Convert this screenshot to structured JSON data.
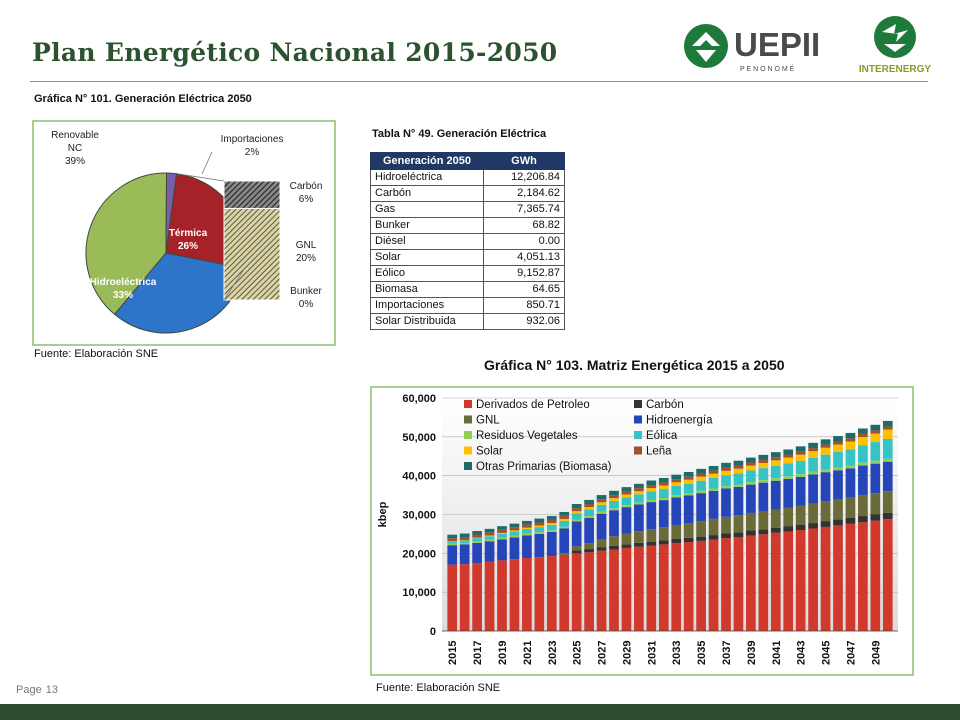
{
  "header": {
    "title": "Plan Energético Nacional 2015-2050",
    "logo_uep_main": "UEPII",
    "logo_uep_sub": "P E N O N O M É",
    "logo_inter": "INTERENERGY"
  },
  "pie_chart": {
    "caption": "Gráfica N° 101. Generación Eléctrica 2050",
    "source": "Fuente: Elaboración SNE",
    "labels": {
      "renovable": [
        "Renovable",
        "NC",
        "39%"
      ],
      "importaciones": [
        "Importaciones",
        "2%"
      ],
      "termica": [
        "Térmica",
        "26%"
      ],
      "hidro": [
        "Hidroeléctrica",
        "33%"
      ],
      "carbon": [
        "Carbón",
        "6%"
      ],
      "gnl": [
        "GNL",
        "20%"
      ],
      "bunker": [
        "Bunker",
        "0%"
      ]
    },
    "chart_data": {
      "type": "pie",
      "slices": [
        {
          "name": "Renovable NC",
          "value": 39,
          "color": "#9bbb59"
        },
        {
          "name": "Importaciones",
          "value": 2,
          "color": "#7a5ea8"
        },
        {
          "name": "Térmica",
          "value": 26,
          "color": "#a52228"
        },
        {
          "name": "Hidroeléctrica",
          "value": 33,
          "color": "#2e75c9"
        }
      ],
      "breakdown": [
        {
          "name": "Carbón",
          "value": 6
        },
        {
          "name": "GNL",
          "value": 20
        },
        {
          "name": "Bunker",
          "value": 0
        }
      ]
    }
  },
  "table": {
    "caption": "Tabla N° 49. Generación Eléctrica",
    "headers": [
      "Generación 2050",
      "GWh"
    ],
    "rows": [
      [
        "Hidroeléctrica",
        "12,206.84"
      ],
      [
        "Carbón",
        "2,184.62"
      ],
      [
        "Gas",
        "7,365.74"
      ],
      [
        "Bunker",
        "68.82"
      ],
      [
        "Diésel",
        "0.00"
      ],
      [
        "Solar",
        "4,051.13"
      ],
      [
        "Eólico",
        "9,152.87"
      ],
      [
        "Biomasa",
        "64.65"
      ],
      [
        "Importaciones",
        "850.71"
      ],
      [
        "Solar Distribuida",
        "932.06"
      ]
    ]
  },
  "bar_chart": {
    "caption": "Gráfica N° 103. Matriz Energética 2015 a 2050",
    "source": "Fuente: Elaboración SNE",
    "chart_data": {
      "type": "bar",
      "stacked": true,
      "ylabel": "kbep",
      "ylim": [
        0,
        60000
      ],
      "yticks": [
        "0",
        "10,000",
        "20,000",
        "30,000",
        "40,000",
        "50,000",
        "60,000"
      ],
      "xtick_labels": [
        "2015",
        "2017",
        "2019",
        "2021",
        "2023",
        "2025",
        "2027",
        "2029",
        "2031",
        "2033",
        "2035",
        "2037",
        "2039",
        "2041",
        "2043",
        "2045",
        "2047",
        "2049"
      ],
      "categories": [
        "2015",
        "2016",
        "2017",
        "2018",
        "2019",
        "2020",
        "2021",
        "2022",
        "2023",
        "2024",
        "2025",
        "2026",
        "2027",
        "2028",
        "2029",
        "2030",
        "2031",
        "2032",
        "2033",
        "2034",
        "2035",
        "2036",
        "2037",
        "2038",
        "2039",
        "2040",
        "2041",
        "2042",
        "2043",
        "2044",
        "2045",
        "2046",
        "2047",
        "2048",
        "2049",
        "2050"
      ],
      "series": [
        {
          "name": "Derivados de Petroleo",
          "color": "#d0392b",
          "values": [
            17100,
            17200,
            17500,
            17800,
            18200,
            18500,
            18800,
            19000,
            19300,
            19600,
            20000,
            20300,
            20700,
            21000,
            21400,
            21700,
            22000,
            22300,
            22600,
            22900,
            23200,
            23500,
            23900,
            24200,
            24600,
            24900,
            25300,
            25600,
            26000,
            26400,
            26800,
            27200,
            27600,
            28000,
            28400,
            28800
          ]
        },
        {
          "name": "Carbón",
          "color": "#333333",
          "values": [
            0,
            0,
            0,
            0,
            0,
            0,
            0,
            0,
            0,
            0,
            800,
            800,
            900,
            900,
            900,
            1000,
            1000,
            1000,
            1100,
            1100,
            1100,
            1200,
            1200,
            1200,
            1300,
            1300,
            1300,
            1400,
            1400,
            1400,
            1500,
            1500,
            1500,
            1600,
            1600,
            1600
          ]
        },
        {
          "name": "GNL",
          "color": "#6b6b3a",
          "values": [
            0,
            0,
            0,
            0,
            0,
            0,
            0,
            0,
            0,
            500,
            1000,
            1500,
            2000,
            2500,
            2800,
            3000,
            3200,
            3400,
            3600,
            3800,
            4000,
            4200,
            4300,
            4400,
            4500,
            4600,
            4700,
            4800,
            4900,
            5000,
            5100,
            5200,
            5300,
            5400,
            5500,
            5600
          ]
        },
        {
          "name": "Hidroenergía",
          "color": "#2645b8",
          "values": [
            5000,
            5100,
            5200,
            5300,
            5400,
            5600,
            5800,
            6000,
            6200,
            6300,
            6400,
            6500,
            6600,
            6700,
            6800,
            6900,
            7000,
            7000,
            7100,
            7100,
            7200,
            7200,
            7300,
            7300,
            7300,
            7400,
            7400,
            7400,
            7400,
            7500,
            7500,
            7500,
            7500,
            7600,
            7600,
            7600
          ]
        },
        {
          "name": "Residuos Vegetales",
          "color": "#92d050",
          "values": [
            400,
            400,
            400,
            400,
            400,
            400,
            450,
            450,
            450,
            450,
            500,
            500,
            500,
            500,
            500,
            500,
            550,
            550,
            550,
            550,
            600,
            600,
            600,
            600,
            650,
            650,
            650,
            650,
            700,
            700,
            700,
            700,
            700,
            750,
            750,
            750
          ]
        },
        {
          "name": "Eólica",
          "color": "#35c3c6",
          "values": [
            500,
            600,
            800,
            900,
            1000,
            1100,
            1200,
            1300,
            1400,
            1500,
            1600,
            1700,
            1800,
            1900,
            2000,
            2100,
            2200,
            2300,
            2400,
            2500,
            2600,
            2700,
            2800,
            2900,
            3000,
            3100,
            3200,
            3300,
            3400,
            3600,
            3800,
            4000,
            4200,
            4500,
            4800,
            5100
          ]
        },
        {
          "name": "Solar",
          "color": "#ffc000",
          "values": [
            100,
            100,
            150,
            200,
            250,
            300,
            350,
            400,
            450,
            500,
            550,
            600,
            650,
            700,
            750,
            800,
            850,
            900,
            950,
            1000,
            1050,
            1100,
            1150,
            1200,
            1250,
            1300,
            1400,
            1500,
            1600,
            1700,
            1800,
            1900,
            2000,
            2100,
            2200,
            2400
          ]
        },
        {
          "name": "Leña",
          "color": "#a0522d",
          "values": [
            800,
            800,
            800,
            800,
            800,
            800,
            800,
            800,
            800,
            800,
            800,
            800,
            800,
            800,
            800,
            800,
            800,
            800,
            800,
            800,
            800,
            800,
            800,
            800,
            800,
            800,
            800,
            800,
            800,
            800,
            800,
            800,
            800,
            800,
            800,
            800
          ]
        },
        {
          "name": "Otras Primarias (Biomasa)",
          "color": "#1e6b6b",
          "values": [
            900,
            900,
            900,
            900,
            950,
            950,
            950,
            1000,
            1000,
            1000,
            1050,
            1050,
            1050,
            1100,
            1100,
            1100,
            1150,
            1150,
            1150,
            1200,
            1200,
            1200,
            1250,
            1250,
            1250,
            1300,
            1300,
            1300,
            1350,
            1350,
            1350,
            1400,
            1400,
            1400,
            1450,
            1450
          ]
        }
      ]
    }
  },
  "footer": {
    "page_label": "Page",
    "page_number": "13"
  }
}
